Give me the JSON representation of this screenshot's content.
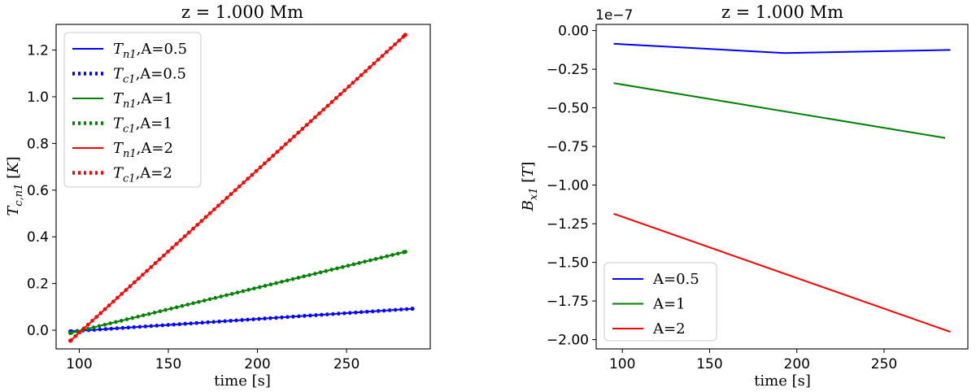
{
  "chart_data": [
    {
      "type": "line",
      "title": "z = 1.000 Mm",
      "xlabel": "time [s]",
      "ylabel": "T_{c,n1} [K]",
      "xlim": [
        87,
        297
      ],
      "ylim": [
        -0.08,
        1.31
      ],
      "xticks": [
        100,
        150,
        200,
        250
      ],
      "xtick_labels": [
        "100",
        "150",
        "200",
        "250"
      ],
      "yticks": [
        0.0,
        0.2,
        0.4,
        0.6,
        0.8,
        1.0,
        1.2
      ],
      "ytick_labels": [
        "0.0",
        "0.2",
        "0.4",
        "0.6",
        "0.8",
        "1.0",
        "1.2"
      ],
      "legend": {
        "placement": "upper-left"
      },
      "series": [
        {
          "name": "T_{n1},A=0.5",
          "label_sym": "T",
          "label_sub": "n1",
          "label_rest": ",A=0.5",
          "color": "#0000ff",
          "style": "solid",
          "x": [
            95,
            287
          ],
          "y": [
            -0.005,
            0.092
          ]
        },
        {
          "name": "T_{c1},A=0.5",
          "label_sym": "T",
          "label_sub": "c1",
          "label_rest": ",A=0.5",
          "color": "#0000ff",
          "style": "dotted",
          "x": [
            95,
            287
          ],
          "y": [
            -0.005,
            0.092
          ]
        },
        {
          "name": "T_{n1},A=1",
          "label_sym": "T",
          "label_sub": "n1",
          "label_rest": ",A=1",
          "color": "#008000",
          "style": "solid",
          "x": [
            95,
            283
          ],
          "y": [
            -0.012,
            0.336
          ]
        },
        {
          "name": "T_{c1},A=1",
          "label_sym": "T",
          "label_sub": "c1",
          "label_rest": ",A=1",
          "color": "#008000",
          "style": "dotted",
          "x": [
            95,
            283
          ],
          "y": [
            -0.012,
            0.336
          ]
        },
        {
          "name": "T_{n1},A=2",
          "label_sym": "T",
          "label_sub": "n1",
          "label_rest": ",A=2",
          "color": "#ff0000",
          "style": "solid",
          "x": [
            95,
            283
          ],
          "y": [
            -0.045,
            1.265
          ]
        },
        {
          "name": "T_{c1},A=2",
          "label_sym": "T",
          "label_sub": "c1",
          "label_rest": ",A=2",
          "color": "#ff0000",
          "style": "dotted",
          "x": [
            95,
            283
          ],
          "y": [
            -0.045,
            1.265
          ]
        }
      ]
    },
    {
      "type": "line",
      "title": "z = 1.000 Mm",
      "xlabel": "time [s]",
      "ylabel": "B_{x1} [T]",
      "offset_text": "1e−7",
      "xlim": [
        85,
        298
      ],
      "ylim": [
        -2.06,
        0.04
      ],
      "xticks": [
        100,
        150,
        200,
        250
      ],
      "xtick_labels": [
        "100",
        "150",
        "200",
        "250"
      ],
      "yticks": [
        0.0,
        -0.25,
        -0.5,
        -0.75,
        -1.0,
        -1.25,
        -1.5,
        -1.75,
        -2.0
      ],
      "ytick_labels": [
        "0.00",
        "−0.25",
        "−0.50",
        "−0.75",
        "−1.00",
        "−1.25",
        "−1.50",
        "−1.75",
        "−2.00"
      ],
      "legend": {
        "placement": "lower-left"
      },
      "series": [
        {
          "name": "A=0.5",
          "color": "#0000ff",
          "x": [
            95,
            193,
            288
          ],
          "y": [
            -0.085,
            -0.145,
            -0.125
          ]
        },
        {
          "name": "A=1",
          "color": "#008000",
          "x": [
            95,
            285
          ],
          "y": [
            -0.34,
            -0.695
          ]
        },
        {
          "name": "A=2",
          "color": "#ff0000",
          "x": [
            95,
            288
          ],
          "y": [
            -1.185,
            -1.95
          ]
        }
      ]
    }
  ]
}
